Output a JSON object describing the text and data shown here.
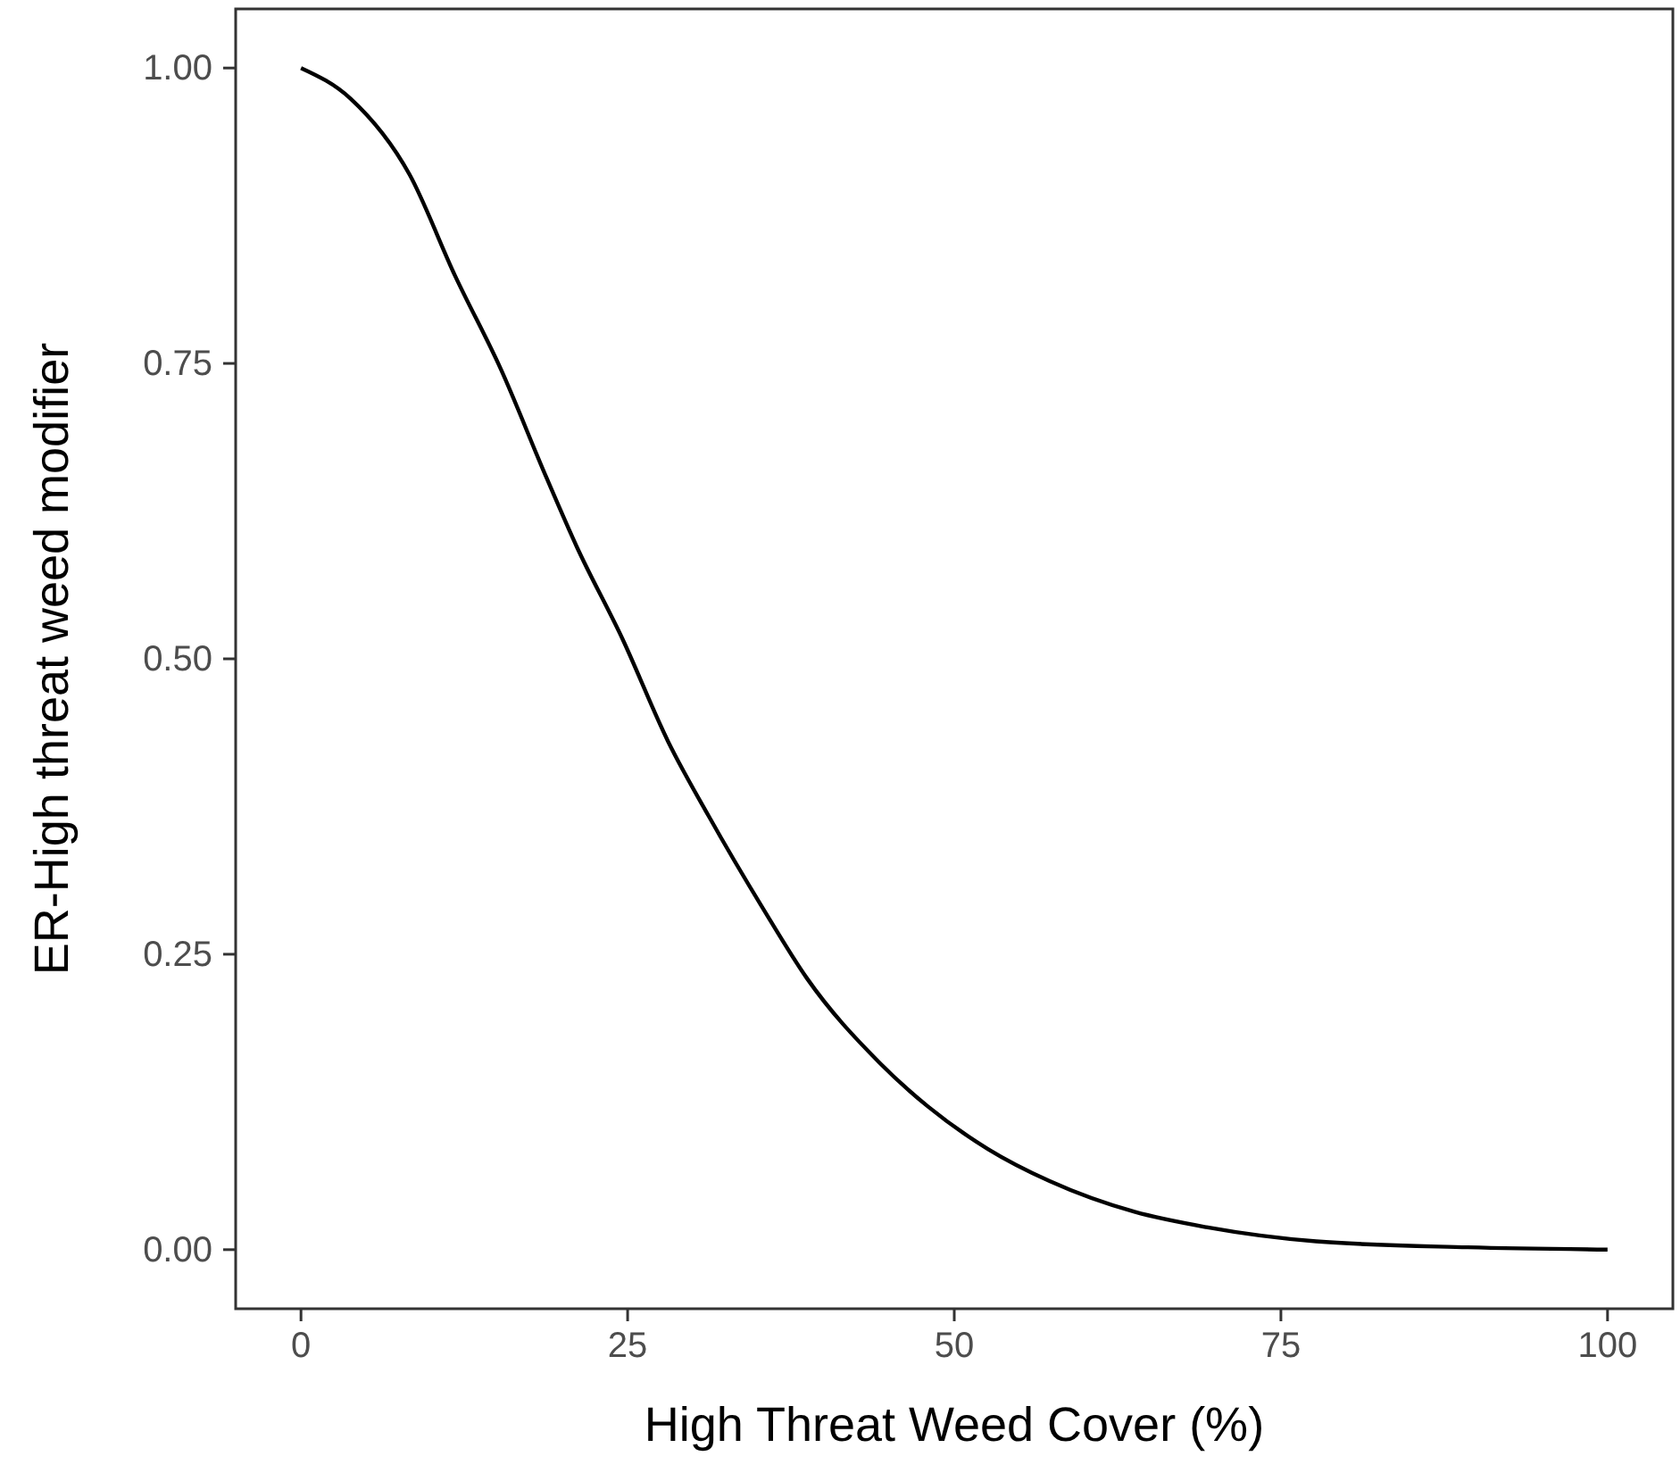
{
  "chart_data": {
    "type": "line",
    "xlabel": "High Threat Weed Cover (%)",
    "ylabel": "ER-High threat weed modifier",
    "xlim": [
      -5,
      105
    ],
    "ylim": [
      -0.05,
      1.05
    ],
    "xticks": [
      0,
      25,
      50,
      75,
      100
    ],
    "yticks": [
      {
        "value": 0,
        "label": "0.00"
      },
      {
        "value": 0.25,
        "label": "0.25"
      },
      {
        "value": 0.5,
        "label": "0.50"
      },
      {
        "value": 0.75,
        "label": "0.75"
      },
      {
        "value": 1,
        "label": "1.00"
      }
    ],
    "grid": false,
    "marker": "none",
    "line_style": "solid",
    "series": [
      {
        "color": "#000000",
        "x": [
          0,
          3.8,
          8.3,
          11.8,
          15.3,
          18.8,
          21.1,
          24.6,
          28.1,
          31.2,
          35.4,
          38.7,
          44.3,
          48,
          52.6,
          57.3,
          63.8,
          69.3,
          77.7,
          89.3,
          100
        ],
        "values": [
          1.0,
          0.974,
          0.91,
          0.824,
          0.745,
          0.653,
          0.595,
          0.517,
          0.43,
          0.367,
          0.288,
          0.23,
          0.158,
          0.121,
          0.085,
          0.058,
          0.032,
          0.019,
          0.007,
          0.002,
          0.0
        ]
      }
    ]
  }
}
